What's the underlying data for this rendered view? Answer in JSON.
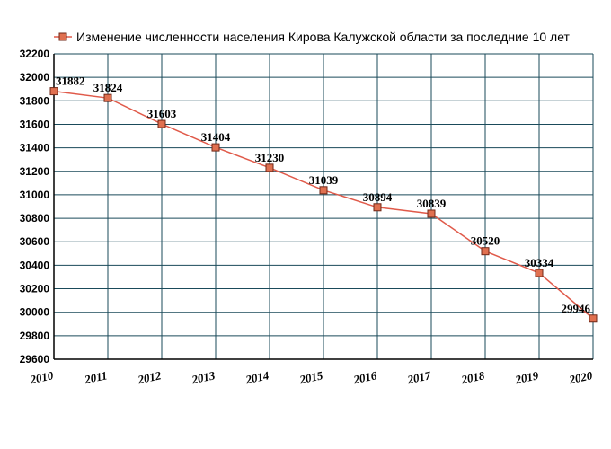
{
  "chart_data": {
    "type": "line",
    "title": "",
    "xlabel": "",
    "ylabel": "",
    "legend_position": "top-left",
    "grid": true,
    "x": [
      "2010",
      "2011",
      "2012",
      "2013",
      "2014",
      "2015",
      "2016",
      "2017",
      "2018",
      "2019",
      "2020"
    ],
    "ylim": [
      29600,
      32200
    ],
    "yticks": [
      29600,
      29800,
      30000,
      30200,
      30400,
      30600,
      30800,
      31000,
      31200,
      31400,
      31600,
      31800,
      32000,
      32200
    ],
    "series": [
      {
        "name": "Изменение численности населения Кирова Калужской области за последние 10 лет",
        "values": [
          31882,
          31824,
          31603,
          31404,
          31230,
          31039,
          30894,
          30839,
          30520,
          30334,
          29946
        ],
        "data_labels": [
          "31882",
          "31824",
          "31603",
          "31404",
          "31230",
          "31039",
          "30894",
          "30839",
          "30520",
          "30334",
          "29946"
        ]
      }
    ],
    "colors": {
      "line": "#e05a4a",
      "marker_fill": "#e07050",
      "marker_stroke": "#702818",
      "grid": "#1a4a5a",
      "axis": "#000000"
    }
  }
}
